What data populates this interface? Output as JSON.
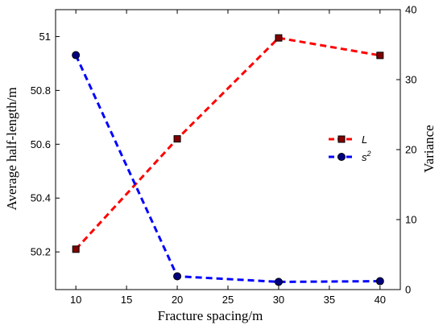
{
  "chart_data": {
    "type": "line",
    "xlabel": "Fracture spacing/m",
    "ylabel": "Average half-length/m",
    "y2label": "Variance",
    "x": [
      10,
      20,
      30,
      40
    ],
    "xlim": [
      8,
      42
    ],
    "xticks": [
      "10",
      "15",
      "20",
      "25",
      "30",
      "35",
      "40"
    ],
    "ylim": [
      50.06,
      51.1
    ],
    "yticks": [
      "50.2",
      "50.4",
      "50.6",
      "50.8",
      "51"
    ],
    "y2lim": [
      0,
      40
    ],
    "y2ticks": [
      "0",
      "10",
      "20",
      "30",
      "40"
    ],
    "grid": false,
    "legend_position": "center-right",
    "series": [
      {
        "name": "L",
        "axis": "left",
        "color": "#ff0000",
        "marker": "square",
        "marker_fill": "#800000",
        "values": [
          50.21,
          50.62,
          50.995,
          50.93
        ]
      },
      {
        "name": "s",
        "name_superscript": "2",
        "axis": "right",
        "color": "#0000ff",
        "marker": "circle",
        "marker_fill": "#000080",
        "values": [
          33.5,
          1.9,
          1.1,
          1.2
        ]
      }
    ]
  }
}
